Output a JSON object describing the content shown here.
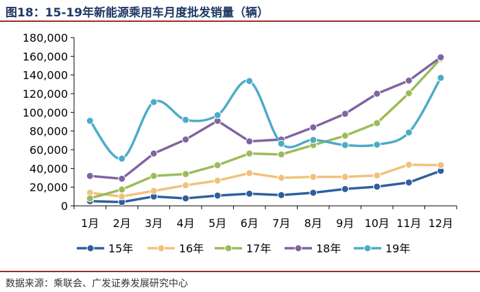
{
  "title": "图18：15-19年新能源乘用车月度批发销量（辆）",
  "source": "数据来源：乘联会、广发证券发展研究中心",
  "chart_data": {
    "type": "line",
    "title": "图18：15-19年新能源乘用车月度批发销量（辆）",
    "categories": [
      "1月",
      "2月",
      "3月",
      "4月",
      "5月",
      "6月",
      "7月",
      "8月",
      "9月",
      "10月",
      "11月",
      "12月"
    ],
    "ylim": [
      0,
      180000
    ],
    "yticks": [
      "0",
      "20,000",
      "40,000",
      "60,000",
      "80,000",
      "100,000",
      "120,000",
      "140,000",
      "160,000",
      "180,000"
    ],
    "grid": false,
    "legend_position": "bottom",
    "series": [
      {
        "name": "15年",
        "color": "#2e5f9e",
        "marker": true,
        "smooth": false,
        "values": [
          5000,
          4000,
          10000,
          8000,
          11000,
          13000,
          11500,
          14000,
          18000,
          20500,
          25000,
          37500
        ]
      },
      {
        "name": "16年",
        "color": "#f0c27b",
        "marker": true,
        "smooth": false,
        "values": [
          14000,
          10000,
          16000,
          22000,
          27000,
          35000,
          30000,
          31000,
          31000,
          32500,
          44000,
          43500
        ]
      },
      {
        "name": "17年",
        "color": "#9bbb59",
        "marker": true,
        "smooth": false,
        "values": [
          8000,
          17500,
          32000,
          34000,
          43500,
          56000,
          55000,
          65000,
          75000,
          88500,
          120500,
          157500
        ]
      },
      {
        "name": "18年",
        "color": "#8064a2",
        "marker": true,
        "smooth": false,
        "values": [
          32000,
          29000,
          56000,
          71000,
          91000,
          69000,
          71000,
          84000,
          98500,
          120000,
          134000,
          159000
        ]
      },
      {
        "name": "19年",
        "color": "#4bacc6",
        "marker": true,
        "smooth": true,
        "values": [
          91000,
          50500,
          111000,
          92000,
          97000,
          133500,
          66500,
          70500,
          65000,
          65500,
          78500,
          137000
        ]
      }
    ]
  }
}
